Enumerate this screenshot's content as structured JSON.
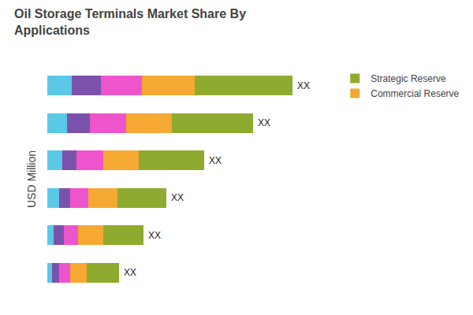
{
  "chart_data": {
    "type": "bar",
    "orientation": "horizontal",
    "stacked": true,
    "title": "Oil Storage Terminals Market Share By\nApplications",
    "ylabel": "USD Million",
    "categories": [
      null,
      null,
      null,
      null,
      null,
      null
    ],
    "series": [
      {
        "color": "#5BC8E8",
        "values": [
          1.5,
          1.2,
          0.9,
          0.7,
          0.4,
          0.3
        ]
      },
      {
        "color": "#7B52AB",
        "values": [
          1.8,
          1.4,
          0.9,
          0.7,
          0.6,
          0.4
        ]
      },
      {
        "color": "#EE55CC",
        "values": [
          2.5,
          2.2,
          1.6,
          1.1,
          0.9,
          0.7
        ]
      },
      {
        "name": "Commercial Reserve",
        "color": "#F5A832",
        "values": [
          3.2,
          2.8,
          2.2,
          1.8,
          1.5,
          1.0
        ]
      },
      {
        "name": "Strategic Reserve",
        "color": "#8EAB2F",
        "values": [
          6.0,
          5.0,
          4.0,
          3.0,
          2.5,
          2.0
        ]
      }
    ],
    "annotations": [
      "XX",
      "XX",
      "XX",
      "XX",
      "XX",
      "XX"
    ],
    "xlim": [
      0,
      17.5
    ],
    "tick_labels": false,
    "grid": false,
    "legend": "upper right"
  }
}
